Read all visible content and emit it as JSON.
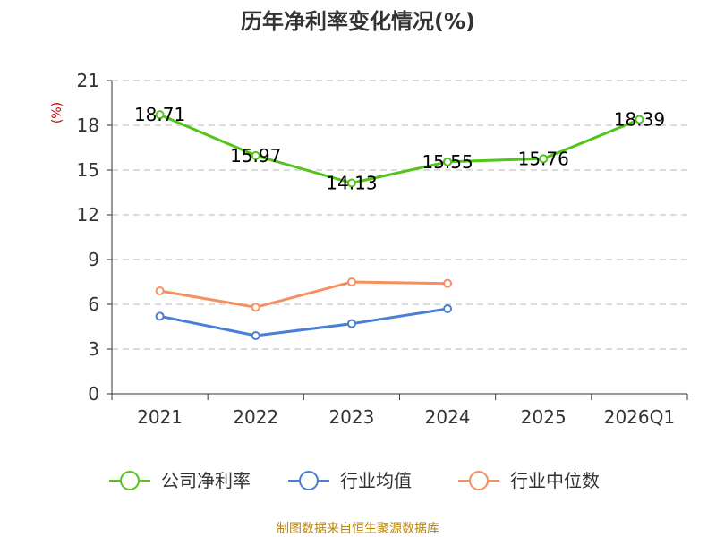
{
  "chart_data": {
    "type": "line",
    "title": "历年净利率变化情况(%)",
    "ylabel": "(%)",
    "xlabel": "",
    "categories": [
      "2021",
      "2022",
      "2023",
      "2024",
      "2025",
      "2026Q1"
    ],
    "ylim": [
      0,
      21
    ],
    "yticks": [
      0,
      3,
      6,
      9,
      12,
      15,
      18,
      21
    ],
    "grid": true,
    "legend_position": "bottom",
    "series": [
      {
        "name": "公司净利率",
        "color": "#52c41a",
        "values": [
          18.71,
          15.97,
          14.13,
          15.55,
          15.76,
          18.39
        ],
        "labels": [
          "18.71",
          "15.97",
          "14.13",
          "15.55",
          "15.76",
          "18.39"
        ]
      },
      {
        "name": "行业均值",
        "color": "#4a7fd6",
        "values": [
          5.2,
          3.9,
          4.7,
          5.7,
          null,
          null
        ]
      },
      {
        "name": "行业中位数",
        "color": "#f59060",
        "values": [
          6.9,
          5.8,
          7.5,
          7.4,
          null,
          null
        ]
      }
    ]
  },
  "source": "制图数据来自恒生聚源数据库"
}
